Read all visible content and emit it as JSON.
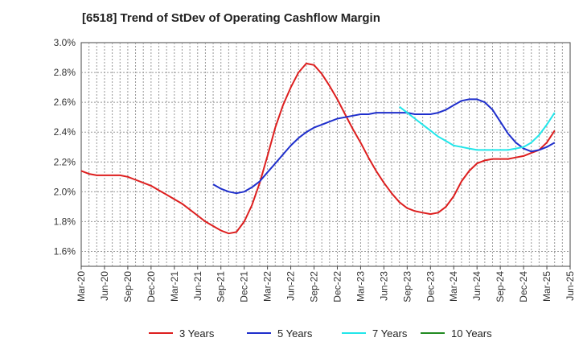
{
  "chart_data": {
    "type": "line",
    "title": "[6518]  Trend of StDev of Operating Cashflow Margin",
    "xlabel": "",
    "ylabel": "",
    "ylim": [
      1.5,
      3.0
    ],
    "y_ticks": [
      "1.6%",
      "1.8%",
      "2.0%",
      "2.2%",
      "2.4%",
      "2.6%",
      "2.8%",
      "3.0%"
    ],
    "y_tick_values": [
      1.6,
      1.8,
      2.0,
      2.2,
      2.4,
      2.6,
      2.8,
      3.0
    ],
    "x_ticks": [
      "Mar-20",
      "Jun-20",
      "Sep-20",
      "Dec-20",
      "Mar-21",
      "Jun-21",
      "Sep-21",
      "Dec-21",
      "Mar-22",
      "Jun-22",
      "Sep-22",
      "Dec-22",
      "Mar-23",
      "Jun-23",
      "Sep-23",
      "Dec-23",
      "Mar-24",
      "Jun-24",
      "Sep-24",
      "Dec-24",
      "Mar-25",
      "Jun-25"
    ],
    "grid": true,
    "legend_position": "bottom",
    "series": [
      {
        "name": "3 Years",
        "color": "#dd1f1f",
        "points": [
          [
            "Mar-20",
            2.14
          ],
          [
            "Apr-20",
            2.12
          ],
          [
            "May-20",
            2.11
          ],
          [
            "Jun-20",
            2.11
          ],
          [
            "Jul-20",
            2.11
          ],
          [
            "Aug-20",
            2.11
          ],
          [
            "Sep-20",
            2.1
          ],
          [
            "Oct-20",
            2.08
          ],
          [
            "Nov-20",
            2.06
          ],
          [
            "Dec-20",
            2.04
          ],
          [
            "Jan-21",
            2.01
          ],
          [
            "Feb-21",
            1.98
          ],
          [
            "Mar-21",
            1.95
          ],
          [
            "Apr-21",
            1.92
          ],
          [
            "May-21",
            1.88
          ],
          [
            "Jun-21",
            1.84
          ],
          [
            "Jul-21",
            1.8
          ],
          [
            "Aug-21",
            1.77
          ],
          [
            "Sep-21",
            1.74
          ],
          [
            "Oct-21",
            1.72
          ],
          [
            "Nov-21",
            1.73
          ],
          [
            "Dec-21",
            1.8
          ],
          [
            "Jan-22",
            1.91
          ],
          [
            "Feb-22",
            2.06
          ],
          [
            "Mar-22",
            2.24
          ],
          [
            "Apr-22",
            2.43
          ],
          [
            "May-22",
            2.58
          ],
          [
            "Jun-22",
            2.7
          ],
          [
            "Jul-22",
            2.8
          ],
          [
            "Aug-22",
            2.86
          ],
          [
            "Sep-22",
            2.85
          ],
          [
            "Oct-22",
            2.79
          ],
          [
            "Nov-22",
            2.71
          ],
          [
            "Dec-22",
            2.62
          ],
          [
            "Jan-23",
            2.52
          ],
          [
            "Feb-23",
            2.42
          ],
          [
            "Mar-23",
            2.33
          ],
          [
            "Apr-23",
            2.23
          ],
          [
            "May-23",
            2.14
          ],
          [
            "Jun-23",
            2.06
          ],
          [
            "Jul-23",
            1.99
          ],
          [
            "Aug-23",
            1.93
          ],
          [
            "Sep-23",
            1.89
          ],
          [
            "Oct-23",
            1.87
          ],
          [
            "Nov-23",
            1.86
          ],
          [
            "Dec-23",
            1.85
          ],
          [
            "Jan-24",
            1.86
          ],
          [
            "Feb-24",
            1.9
          ],
          [
            "Mar-24",
            1.97
          ],
          [
            "Apr-24",
            2.07
          ],
          [
            "May-24",
            2.14
          ],
          [
            "Jun-24",
            2.19
          ],
          [
            "Jul-24",
            2.21
          ],
          [
            "Aug-24",
            2.22
          ],
          [
            "Sep-24",
            2.22
          ],
          [
            "Oct-24",
            2.22
          ],
          [
            "Nov-24",
            2.23
          ],
          [
            "Dec-24",
            2.24
          ],
          [
            "Jan-25",
            2.26
          ],
          [
            "Feb-25",
            2.28
          ],
          [
            "Mar-25",
            2.33
          ],
          [
            "Apr-25",
            2.41
          ]
        ]
      },
      {
        "name": "5 Years",
        "color": "#1f2fcc",
        "points": [
          [
            "Aug-21",
            2.05
          ],
          [
            "Sep-21",
            2.02
          ],
          [
            "Oct-21",
            2.0
          ],
          [
            "Nov-21",
            1.99
          ],
          [
            "Dec-21",
            2.0
          ],
          [
            "Jan-22",
            2.03
          ],
          [
            "Feb-22",
            2.07
          ],
          [
            "Mar-22",
            2.13
          ],
          [
            "Apr-22",
            2.19
          ],
          [
            "May-22",
            2.25
          ],
          [
            "Jun-22",
            2.31
          ],
          [
            "Jul-22",
            2.36
          ],
          [
            "Aug-22",
            2.4
          ],
          [
            "Sep-22",
            2.43
          ],
          [
            "Oct-22",
            2.45
          ],
          [
            "Nov-22",
            2.47
          ],
          [
            "Dec-22",
            2.49
          ],
          [
            "Jan-23",
            2.5
          ],
          [
            "Feb-23",
            2.51
          ],
          [
            "Mar-23",
            2.52
          ],
          [
            "Apr-23",
            2.52
          ],
          [
            "May-23",
            2.53
          ],
          [
            "Jun-23",
            2.53
          ],
          [
            "Jul-23",
            2.53
          ],
          [
            "Aug-23",
            2.53
          ],
          [
            "Sep-23",
            2.53
          ],
          [
            "Oct-23",
            2.52
          ],
          [
            "Nov-23",
            2.52
          ],
          [
            "Dec-23",
            2.52
          ],
          [
            "Jan-24",
            2.53
          ],
          [
            "Feb-24",
            2.55
          ],
          [
            "Mar-24",
            2.58
          ],
          [
            "Apr-24",
            2.61
          ],
          [
            "May-24",
            2.62
          ],
          [
            "Jun-24",
            2.62
          ],
          [
            "Jul-24",
            2.6
          ],
          [
            "Aug-24",
            2.55
          ],
          [
            "Sep-24",
            2.47
          ],
          [
            "Oct-24",
            2.39
          ],
          [
            "Nov-24",
            2.33
          ],
          [
            "Dec-24",
            2.29
          ],
          [
            "Jan-25",
            2.27
          ],
          [
            "Feb-25",
            2.28
          ],
          [
            "Mar-25",
            2.3
          ],
          [
            "Apr-25",
            2.33
          ]
        ]
      },
      {
        "name": "7 Years",
        "color": "#22e6ea",
        "points": [
          [
            "Aug-23",
            2.57
          ],
          [
            "Sep-23",
            2.53
          ],
          [
            "Oct-23",
            2.49
          ],
          [
            "Nov-23",
            2.45
          ],
          [
            "Dec-23",
            2.41
          ],
          [
            "Jan-24",
            2.37
          ],
          [
            "Feb-24",
            2.34
          ],
          [
            "Mar-24",
            2.31
          ],
          [
            "Apr-24",
            2.3
          ],
          [
            "May-24",
            2.29
          ],
          [
            "Jun-24",
            2.28
          ],
          [
            "Jul-24",
            2.28
          ],
          [
            "Aug-24",
            2.28
          ],
          [
            "Sep-24",
            2.28
          ],
          [
            "Oct-24",
            2.28
          ],
          [
            "Nov-24",
            2.29
          ],
          [
            "Dec-24",
            2.3
          ],
          [
            "Jan-25",
            2.33
          ],
          [
            "Feb-25",
            2.38
          ],
          [
            "Mar-25",
            2.45
          ],
          [
            "Apr-25",
            2.53
          ]
        ]
      },
      {
        "name": "10 Years",
        "color": "#228b22",
        "points": []
      }
    ]
  }
}
